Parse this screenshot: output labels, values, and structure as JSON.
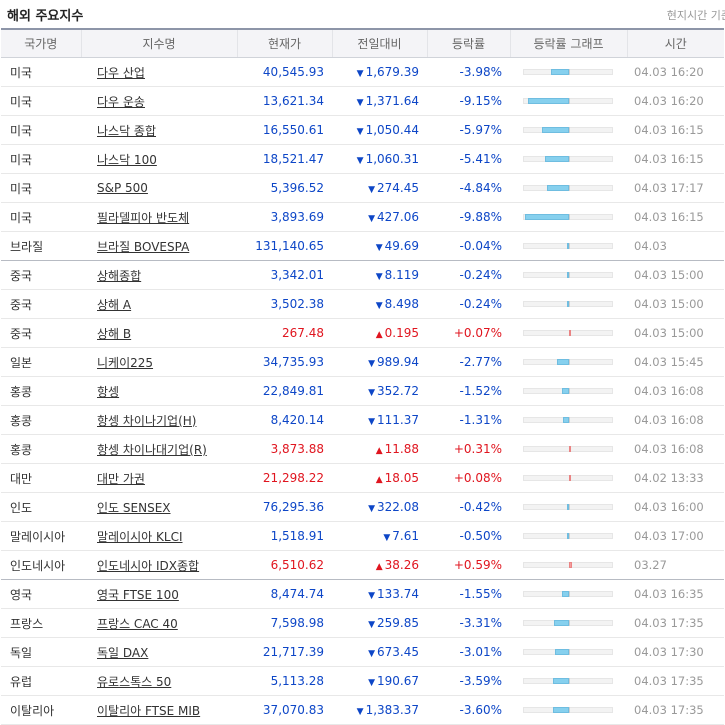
{
  "header": {
    "title": "해외 주요지수",
    "note": "현지시간 기준"
  },
  "columns": [
    "국가명",
    "지수명",
    "현재가",
    "전일대비",
    "등락률",
    "등락률 그래프",
    "시간"
  ],
  "graph_max_pct": 10,
  "rows": [
    {
      "country": "미국",
      "name": "다우 산업",
      "price": "40,545.93",
      "dir": "down",
      "change": "1,679.39",
      "rate": "-3.98%",
      "pct": -3.98,
      "time": "04.03 16:20"
    },
    {
      "country": "미국",
      "name": "다우 운송",
      "price": "13,621.34",
      "dir": "down",
      "change": "1,371.64",
      "rate": "-9.15%",
      "pct": -9.15,
      "time": "04.03 16:20"
    },
    {
      "country": "미국",
      "name": "나스닥 종합",
      "price": "16,550.61",
      "dir": "down",
      "change": "1,050.44",
      "rate": "-5.97%",
      "pct": -5.97,
      "time": "04.03 16:15"
    },
    {
      "country": "미국",
      "name": "나스닥 100",
      "price": "18,521.47",
      "dir": "down",
      "change": "1,060.31",
      "rate": "-5.41%",
      "pct": -5.41,
      "time": "04.03 16:15"
    },
    {
      "country": "미국",
      "name": "S&P 500",
      "price": "5,396.52",
      "dir": "down",
      "change": "274.45",
      "rate": "-4.84%",
      "pct": -4.84,
      "time": "04.03 17:17"
    },
    {
      "country": "미국",
      "name": "필라델피아 반도체",
      "price": "3,893.69",
      "dir": "down",
      "change": "427.06",
      "rate": "-9.88%",
      "pct": -9.88,
      "time": "04.03 16:15"
    },
    {
      "country": "브라질",
      "name": "브라질 BOVESPA",
      "price": "131,140.65",
      "dir": "down",
      "change": "49.69",
      "rate": "-0.04%",
      "pct": -0.04,
      "time": "04.03",
      "group_end": true
    },
    {
      "country": "중국",
      "name": "상해종합",
      "price": "3,342.01",
      "dir": "down",
      "change": "8.119",
      "rate": "-0.24%",
      "pct": -0.24,
      "time": "04.03 15:00"
    },
    {
      "country": "중국",
      "name": "상해 A",
      "price": "3,502.38",
      "dir": "down",
      "change": "8.498",
      "rate": "-0.24%",
      "pct": -0.24,
      "time": "04.03 15:00"
    },
    {
      "country": "중국",
      "name": "상해 B",
      "price": "267.48",
      "dir": "up",
      "change": "0.195",
      "rate": "+0.07%",
      "pct": 0.07,
      "time": "04.03 15:00"
    },
    {
      "country": "일본",
      "name": "니케이225",
      "price": "34,735.93",
      "dir": "down",
      "change": "989.94",
      "rate": "-2.77%",
      "pct": -2.77,
      "time": "04.03 15:45"
    },
    {
      "country": "홍콩",
      "name": "항셍",
      "price": "22,849.81",
      "dir": "down",
      "change": "352.72",
      "rate": "-1.52%",
      "pct": -1.52,
      "time": "04.03 16:08"
    },
    {
      "country": "홍콩",
      "name": "항셍 차이나기업(H)",
      "price": "8,420.14",
      "dir": "down",
      "change": "111.37",
      "rate": "-1.31%",
      "pct": -1.31,
      "time": "04.03 16:08"
    },
    {
      "country": "홍콩",
      "name": "항셍 차이나대기업(R)",
      "price": "3,873.88",
      "dir": "up",
      "change": "11.88",
      "rate": "+0.31%",
      "pct": 0.31,
      "time": "04.03 16:08"
    },
    {
      "country": "대만",
      "name": "대만 가권",
      "price": "21,298.22",
      "dir": "up",
      "change": "18.05",
      "rate": "+0.08%",
      "pct": 0.08,
      "time": "04.02 13:33"
    },
    {
      "country": "인도",
      "name": "인도 SENSEX",
      "price": "76,295.36",
      "dir": "down",
      "change": "322.08",
      "rate": "-0.42%",
      "pct": -0.42,
      "time": "04.03 16:00"
    },
    {
      "country": "말레이시아",
      "name": "말레이시아 KLCI",
      "price": "1,518.91",
      "dir": "down",
      "change": "7.61",
      "rate": "-0.50%",
      "pct": -0.5,
      "time": "04.03 17:00"
    },
    {
      "country": "인도네시아",
      "name": "인도네시아 IDX종합",
      "price": "6,510.62",
      "dir": "up",
      "change": "38.26",
      "rate": "+0.59%",
      "pct": 0.59,
      "time": "03.27",
      "group_end": true
    },
    {
      "country": "영국",
      "name": "영국 FTSE 100",
      "price": "8,474.74",
      "dir": "down",
      "change": "133.74",
      "rate": "-1.55%",
      "pct": -1.55,
      "time": "04.03 16:35"
    },
    {
      "country": "프랑스",
      "name": "프랑스 CAC 40",
      "price": "7,598.98",
      "dir": "down",
      "change": "259.85",
      "rate": "-3.31%",
      "pct": -3.31,
      "time": "04.03 17:35"
    },
    {
      "country": "독일",
      "name": "독일 DAX",
      "price": "21,717.39",
      "dir": "down",
      "change": "673.45",
      "rate": "-3.01%",
      "pct": -3.01,
      "time": "04.03 17:30"
    },
    {
      "country": "유럽",
      "name": "유로스톡스 50",
      "price": "5,113.28",
      "dir": "down",
      "change": "190.67",
      "rate": "-3.59%",
      "pct": -3.59,
      "time": "04.03 17:35"
    },
    {
      "country": "이탈리아",
      "name": "이탈리아 FTSE MIB",
      "price": "37,070.83",
      "dir": "down",
      "change": "1,383.37",
      "rate": "-3.60%",
      "pct": -3.6,
      "time": "04.03 17:35"
    }
  ],
  "arrows": {
    "down": "▼",
    "up": "▲"
  }
}
